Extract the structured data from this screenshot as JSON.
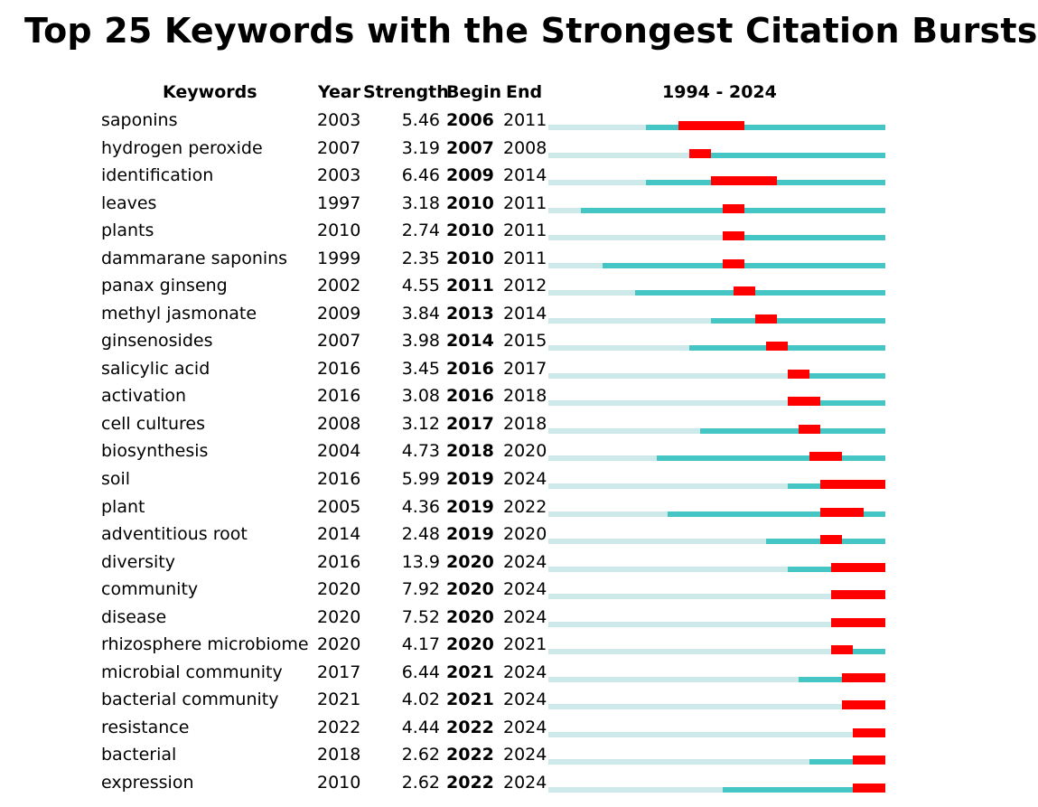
{
  "title": "Top 25 Keywords with the Strongest Citation Bursts",
  "headers": {
    "keywords": "Keywords",
    "year": "Year",
    "strength": "Strength",
    "begin": "Begin",
    "end": "End",
    "range": "1994 - 2024"
  },
  "colors": {
    "before": "#cde9ea",
    "active": "#46c5c5",
    "burst": "#ff0000"
  },
  "chart_data": {
    "type": "table",
    "title": "Top 25 Keywords with the Strongest Citation Bursts",
    "timeline": [
      1994,
      2024
    ],
    "rows": [
      {
        "keyword": "saponins",
        "year": "2003",
        "strength": "5.46",
        "begin": "2006",
        "end": "2011"
      },
      {
        "keyword": "hydrogen peroxide",
        "year": "2007",
        "strength": "3.19",
        "begin": "2007",
        "end": "2008"
      },
      {
        "keyword": "identification",
        "year": "2003",
        "strength": "6.46",
        "begin": "2009",
        "end": "2014"
      },
      {
        "keyword": "leaves",
        "year": "1997",
        "strength": "3.18",
        "begin": "2010",
        "end": "2011"
      },
      {
        "keyword": "plants",
        "year": "2010",
        "strength": "2.74",
        "begin": "2010",
        "end": "2011"
      },
      {
        "keyword": "dammarane saponins",
        "year": "1999",
        "strength": "2.35",
        "begin": "2010",
        "end": "2011"
      },
      {
        "keyword": "panax ginseng",
        "year": "2002",
        "strength": "4.55",
        "begin": "2011",
        "end": "2012"
      },
      {
        "keyword": "methyl jasmonate",
        "year": "2009",
        "strength": "3.84",
        "begin": "2013",
        "end": "2014"
      },
      {
        "keyword": "ginsenosides",
        "year": "2007",
        "strength": "3.98",
        "begin": "2014",
        "end": "2015"
      },
      {
        "keyword": "salicylic acid",
        "year": "2016",
        "strength": "3.45",
        "begin": "2016",
        "end": "2017"
      },
      {
        "keyword": "activation",
        "year": "2016",
        "strength": "3.08",
        "begin": "2016",
        "end": "2018"
      },
      {
        "keyword": "cell cultures",
        "year": "2008",
        "strength": "3.12",
        "begin": "2017",
        "end": "2018"
      },
      {
        "keyword": "biosynthesis",
        "year": "2004",
        "strength": "4.73",
        "begin": "2018",
        "end": "2020"
      },
      {
        "keyword": "soil",
        "year": "2016",
        "strength": "5.99",
        "begin": "2019",
        "end": "2024"
      },
      {
        "keyword": "plant",
        "year": "2005",
        "strength": "4.36",
        "begin": "2019",
        "end": "2022"
      },
      {
        "keyword": "adventitious root",
        "year": "2014",
        "strength": "2.48",
        "begin": "2019",
        "end": "2020"
      },
      {
        "keyword": "diversity",
        "year": "2016",
        "strength": "13.9",
        "begin": "2020",
        "end": "2024"
      },
      {
        "keyword": "community",
        "year": "2020",
        "strength": "7.92",
        "begin": "2020",
        "end": "2024"
      },
      {
        "keyword": "disease",
        "year": "2020",
        "strength": "7.52",
        "begin": "2020",
        "end": "2024"
      },
      {
        "keyword": "rhizosphere microbiome",
        "year": "2020",
        "strength": "4.17",
        "begin": "2020",
        "end": "2021"
      },
      {
        "keyword": "microbial community",
        "year": "2017",
        "strength": "6.44",
        "begin": "2021",
        "end": "2024"
      },
      {
        "keyword": "bacterial community",
        "year": "2021",
        "strength": "4.02",
        "begin": "2021",
        "end": "2024"
      },
      {
        "keyword": "resistance",
        "year": "2022",
        "strength": "4.44",
        "begin": "2022",
        "end": "2024"
      },
      {
        "keyword": "bacterial",
        "year": "2018",
        "strength": "2.62",
        "begin": "2022",
        "end": "2024"
      },
      {
        "keyword": "expression",
        "year": "2010",
        "strength": "2.62",
        "begin": "2022",
        "end": "2024"
      }
    ]
  }
}
